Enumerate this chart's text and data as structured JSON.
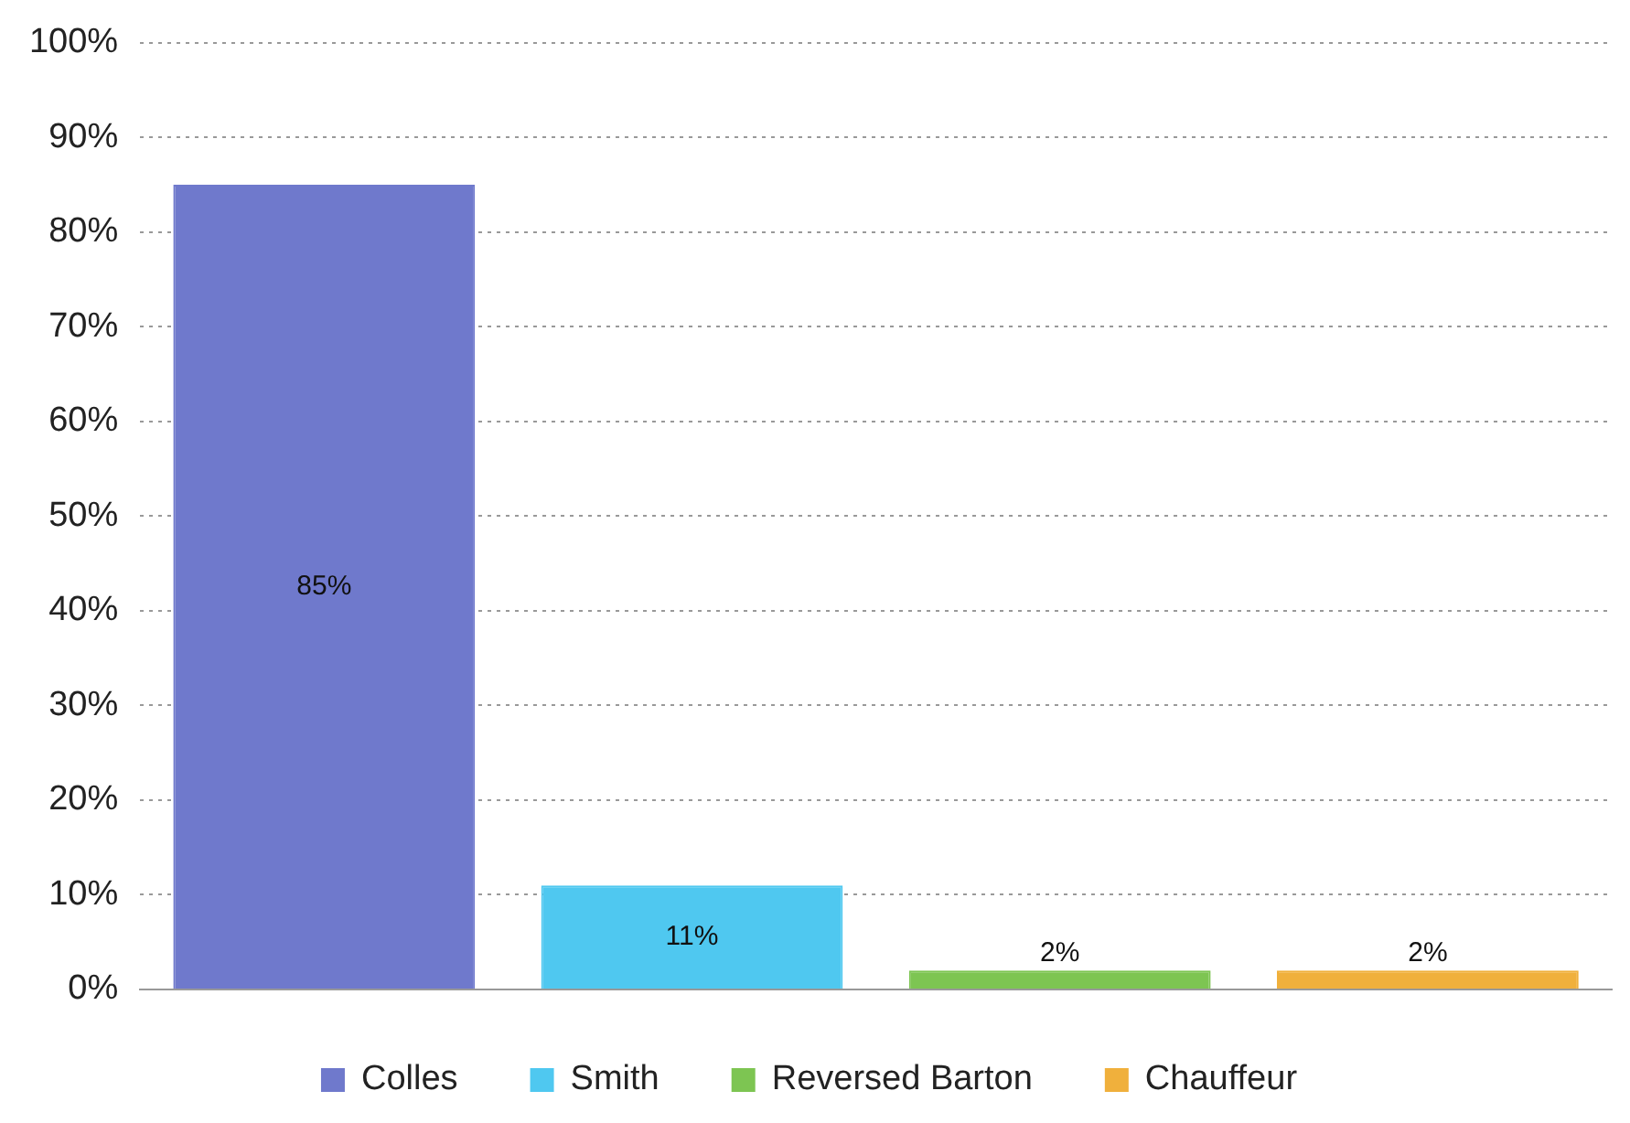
{
  "chart_data": {
    "type": "bar",
    "categories": [
      null,
      null,
      null,
      null
    ],
    "series": [
      {
        "name": "Colles",
        "color": "#6f79cc",
        "values": [
          85,
          null,
          null,
          null
        ],
        "value_labels": [
          "85%",
          null,
          null,
          null
        ]
      },
      {
        "name": "Smith",
        "color": "#4fc8f0",
        "values": [
          null,
          11,
          null,
          null
        ],
        "value_labels": [
          null,
          "11%",
          null,
          null
        ]
      },
      {
        "name": "Reversed Barton",
        "color": "#7dc552",
        "values": [
          null,
          null,
          2,
          null
        ],
        "value_labels": [
          null,
          null,
          "2%",
          null
        ]
      },
      {
        "name": "Chauffeur",
        "color": "#f0b03c",
        "values": [
          null,
          null,
          null,
          2
        ],
        "value_labels": [
          null,
          null,
          null,
          "2%"
        ]
      }
    ],
    "ylim": [
      0,
      100
    ],
    "yticks": [
      {
        "value": 0,
        "label": "0%"
      },
      {
        "value": 10,
        "label": "10%"
      },
      {
        "value": 20,
        "label": "20%"
      },
      {
        "value": 30,
        "label": "30%"
      },
      {
        "value": 40,
        "label": "40%"
      },
      {
        "value": 50,
        "label": "50%"
      },
      {
        "value": 60,
        "label": "60%"
      },
      {
        "value": 70,
        "label": "70%"
      },
      {
        "value": 80,
        "label": "80%"
      },
      {
        "value": 90,
        "label": "90%"
      },
      {
        "value": 100,
        "label": "100%"
      }
    ],
    "grid": "y",
    "legend": "bottom"
  }
}
